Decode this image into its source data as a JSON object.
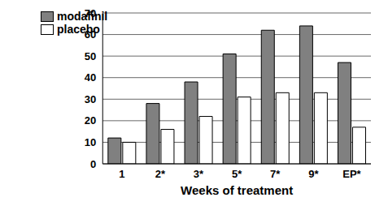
{
  "chart_data": {
    "type": "bar",
    "x_label": "Weeks of treatment",
    "categories": [
      "1",
      "2*",
      "3*",
      "5*",
      "7*",
      "9*",
      "EP*"
    ],
    "series": [
      {
        "name": "modafinil",
        "color": "#808080",
        "values": [
          12,
          28,
          38,
          51,
          62,
          64,
          47
        ]
      },
      {
        "name": "placebo",
        "color": "#ffffff",
        "values": [
          10,
          16,
          22,
          31,
          33,
          33,
          17
        ]
      }
    ],
    "ylim": [
      0,
      70
    ],
    "yticks": [
      0,
      10,
      20,
      30,
      40,
      50,
      60,
      70
    ],
    "grid": true,
    "legend": "top-left"
  }
}
